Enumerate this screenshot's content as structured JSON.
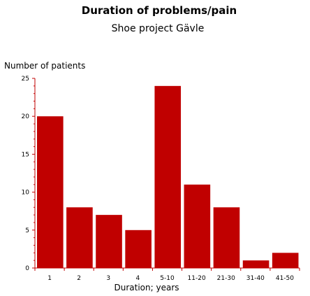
{
  "chart_data": {
    "type": "bar",
    "title": "Duration of problems/pain",
    "subtitle": "Shoe project Gävle",
    "xlabel": "Duration; years",
    "ylabel": "Number of patients",
    "categories": [
      "1",
      "2",
      "3",
      "4",
      "5-10",
      "11-20",
      "21-30",
      "31-40",
      "41-50"
    ],
    "values": [
      20,
      8,
      7,
      5,
      24,
      11,
      8,
      1,
      2
    ],
    "ylim": [
      0,
      25
    ],
    "yticks": [
      "0",
      "5",
      "10",
      "15",
      "20",
      "25"
    ],
    "bar_color": "#c00000",
    "axis_color": "#c00000",
    "grid": false,
    "legend": "none"
  }
}
